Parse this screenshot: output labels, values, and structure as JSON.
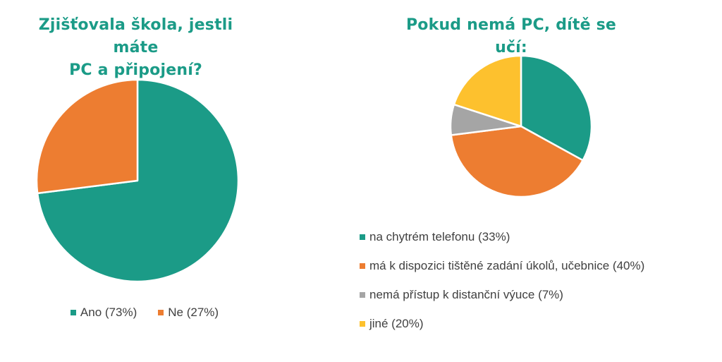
{
  "colors": {
    "title": "#1b9b87",
    "teal": "#1b9b87",
    "orange": "#ed7d31",
    "gray": "#a5a5a5",
    "yellow": "#fdc12e"
  },
  "chart_data": [
    {
      "type": "pie",
      "title": "Zjišťovala škola, jestli máte PC a připojení?",
      "title_lines": [
        "Zjišťovala škola, jestli máte",
        "PC a připojení?"
      ],
      "categories": [
        "Ano",
        "Ne"
      ],
      "values": [
        73,
        27
      ],
      "colors": [
        "#1b9b87",
        "#ed7d31"
      ],
      "legend": {
        "position": "bottom",
        "entries": [
          "Ano (73%)",
          "Ne (27%)"
        ]
      }
    },
    {
      "type": "pie",
      "title": "Pokud nemá PC, dítě se učí:",
      "categories": [
        "na chytrém telefonu",
        "má k dispozici tištěné zadání úkolů, učebnice",
        "nemá přístup k distanční výuce",
        "jiné"
      ],
      "values": [
        33,
        40,
        7,
        20
      ],
      "colors": [
        "#1b9b87",
        "#ed7d31",
        "#a5a5a5",
        "#fdc12e"
      ],
      "legend": {
        "position": "bottom",
        "entries": [
          "na chytrém telefonu (33%)",
          "má k dispozici tištěné zadání úkolů, učebnice (40%)",
          "nemá přístup k distanční výuce (7%)",
          "jiné (20%)"
        ]
      }
    }
  ]
}
